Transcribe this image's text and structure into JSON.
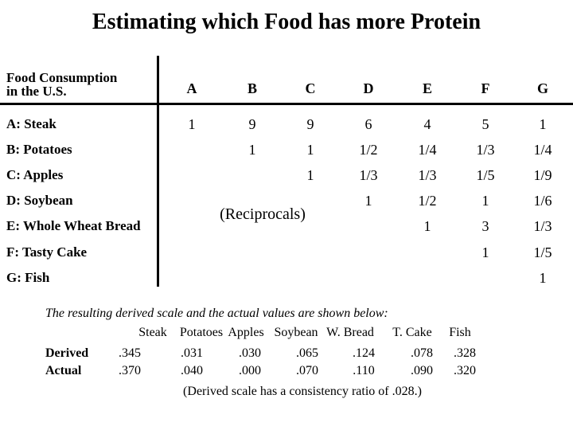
{
  "title": "Estimating which Food has more Protein",
  "matrix": {
    "corner_label": "Food Consumption\nin the U.S.",
    "columns": [
      "A",
      "B",
      "C",
      "D",
      "E",
      "F",
      "G"
    ],
    "rows": [
      {
        "label": "A: Steak",
        "values": [
          "1",
          "9",
          "9",
          "6",
          "4",
          "5",
          "1"
        ]
      },
      {
        "label": "B: Potatoes",
        "values": [
          "",
          "1",
          "1",
          "1/2",
          "1/4",
          "1/3",
          "1/4"
        ]
      },
      {
        "label": "C: Apples",
        "values": [
          "",
          "",
          "1",
          "1/3",
          "1/3",
          "1/5",
          "1/9"
        ]
      },
      {
        "label": "D: Soybean",
        "values": [
          "",
          "",
          "",
          "1",
          "1/2",
          "1",
          "1/6"
        ]
      },
      {
        "label": "E: Whole Wheat Bread",
        "values": [
          "",
          "",
          "",
          "",
          "1",
          "3",
          "1/3"
        ]
      },
      {
        "label": "F: Tasty Cake",
        "values": [
          "",
          "",
          "",
          "",
          "",
          "1",
          "1/5"
        ]
      },
      {
        "label": "G: Fish",
        "values": [
          "",
          "",
          "",
          "",
          "",
          "",
          "1"
        ]
      }
    ],
    "reciprocals_note": "(Reciprocals)"
  },
  "derived_section": {
    "intro": "The resulting derived scale and the actual values are shown below:",
    "food_labels": [
      "Steak",
      "Potatoes",
      "Apples",
      "Soybean",
      "W. Bread",
      "T. Cake",
      "Fish"
    ],
    "derived_label": "Derived",
    "actual_label": "Actual",
    "derived_values": [
      ".345",
      ".031",
      ".030",
      ".065",
      ".124",
      ".078",
      ".328"
    ],
    "actual_values": [
      ".370",
      ".040",
      ".000",
      ".070",
      ".110",
      ".090",
      ".320"
    ],
    "consistency_note": "(Derived scale has a consistency ratio of .028.)"
  },
  "colors": {
    "background": "#ffffff",
    "text": "#000000",
    "rule": "#000000"
  }
}
